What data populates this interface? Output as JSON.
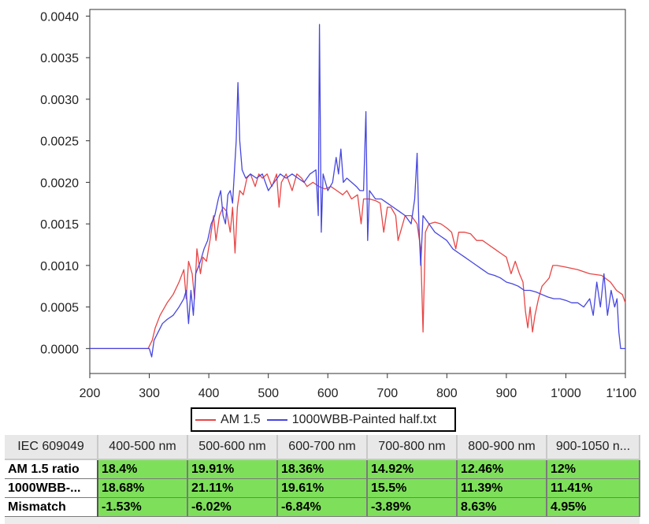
{
  "chart_data": {
    "type": "line",
    "title": "",
    "xlabel": "",
    "ylabel": "",
    "xlim": [
      200,
      1100
    ],
    "ylim": [
      -0.0003,
      0.00408
    ],
    "x_ticks": [
      {
        "value": 200,
        "label": "200"
      },
      {
        "value": 300,
        "label": "300"
      },
      {
        "value": 400,
        "label": "400"
      },
      {
        "value": 500,
        "label": "500"
      },
      {
        "value": 600,
        "label": "600"
      },
      {
        "value": 700,
        "label": "700"
      },
      {
        "value": 800,
        "label": "800"
      },
      {
        "value": 900,
        "label": "900"
      },
      {
        "value": 1000,
        "label": "1'000"
      },
      {
        "value": 1100,
        "label": "1'100"
      }
    ],
    "y_ticks": [
      {
        "value": 0.0,
        "label": "0.0000"
      },
      {
        "value": 0.0005,
        "label": "0.0005"
      },
      {
        "value": 0.001,
        "label": "0.0010"
      },
      {
        "value": 0.0015,
        "label": "0.0015"
      },
      {
        "value": 0.002,
        "label": "0.0020"
      },
      {
        "value": 0.0025,
        "label": "0.0025"
      },
      {
        "value": 0.003,
        "label": "0.0030"
      },
      {
        "value": 0.0035,
        "label": "0.0035"
      },
      {
        "value": 0.004,
        "label": "0.0040"
      }
    ],
    "grid": false,
    "legend_position": "bottom-center",
    "series": [
      {
        "name": "AM 1.5",
        "color": "#e84545",
        "points": [
          [
            200,
            0
          ],
          [
            280,
            0
          ],
          [
            298,
            0
          ],
          [
            305,
            0.0001
          ],
          [
            310,
            0.00025
          ],
          [
            318,
            0.0004
          ],
          [
            330,
            0.00055
          ],
          [
            340,
            0.00065
          ],
          [
            350,
            0.0008
          ],
          [
            358,
            0.00095
          ],
          [
            362,
            0.0006
          ],
          [
            366,
            0.00105
          ],
          [
            372,
            0.0009
          ],
          [
            376,
            0.0006
          ],
          [
            380,
            0.0012
          ],
          [
            386,
            0.0009
          ],
          [
            390,
            0.0011
          ],
          [
            396,
            0.00105
          ],
          [
            402,
            0.0013
          ],
          [
            408,
            0.0016
          ],
          [
            412,
            0.0013
          ],
          [
            418,
            0.0016
          ],
          [
            424,
            0.0017
          ],
          [
            430,
            0.00165
          ],
          [
            436,
            0.0014
          ],
          [
            440,
            0.0017
          ],
          [
            444,
            0.00115
          ],
          [
            448,
            0.0017
          ],
          [
            452,
            0.0019
          ],
          [
            458,
            0.00185
          ],
          [
            464,
            0.00205
          ],
          [
            470,
            0.0021
          ],
          [
            478,
            0.00195
          ],
          [
            484,
            0.0021
          ],
          [
            490,
            0.00205
          ],
          [
            498,
            0.0021
          ],
          [
            506,
            0.00195
          ],
          [
            514,
            0.0021
          ],
          [
            518,
            0.0017
          ],
          [
            522,
            0.002
          ],
          [
            530,
            0.0021
          ],
          [
            540,
            0.0019
          ],
          [
            548,
            0.0021
          ],
          [
            556,
            0.00205
          ],
          [
            565,
            0.00195
          ],
          [
            575,
            0.002
          ],
          [
            585,
            0.00195
          ],
          [
            595,
            0.00192
          ],
          [
            605,
            0.00195
          ],
          [
            615,
            0.0019
          ],
          [
            625,
            0.00185
          ],
          [
            632,
            0.0019
          ],
          [
            640,
            0.0018
          ],
          [
            650,
            0.00185
          ],
          [
            656,
            0.0015
          ],
          [
            660,
            0.0018
          ],
          [
            670,
            0.0018
          ],
          [
            680,
            0.00178
          ],
          [
            688,
            0.00175
          ],
          [
            694,
            0.0014
          ],
          [
            700,
            0.0017
          ],
          [
            706,
            0.0017
          ],
          [
            714,
            0.0016
          ],
          [
            718,
            0.0013
          ],
          [
            724,
            0.00145
          ],
          [
            730,
            0.0016
          ],
          [
            740,
            0.0016
          ],
          [
            750,
            0.0015
          ],
          [
            756,
            0.0012
          ],
          [
            760,
            0.0002
          ],
          [
            764,
            0.0014
          ],
          [
            770,
            0.0015
          ],
          [
            780,
            0.00152
          ],
          [
            790,
            0.0015
          ],
          [
            800,
            0.00145
          ],
          [
            808,
            0.0014
          ],
          [
            815,
            0.0012
          ],
          [
            820,
            0.0014
          ],
          [
            830,
            0.0014
          ],
          [
            840,
            0.00138
          ],
          [
            850,
            0.0013
          ],
          [
            860,
            0.0013
          ],
          [
            870,
            0.00125
          ],
          [
            880,
            0.0012
          ],
          [
            890,
            0.00115
          ],
          [
            900,
            0.0011
          ],
          [
            908,
            0.0009
          ],
          [
            915,
            0.00105
          ],
          [
            922,
            0.0009
          ],
          [
            928,
            0.0008
          ],
          [
            932,
            0.00045
          ],
          [
            936,
            0.00025
          ],
          [
            940,
            0.0005
          ],
          [
            944,
            0.0002
          ],
          [
            948,
            0.0004
          ],
          [
            954,
            0.0006
          ],
          [
            960,
            0.00075
          ],
          [
            966,
            0.0008
          ],
          [
            972,
            0.00085
          ],
          [
            978,
            0.001
          ],
          [
            985,
            0.001
          ],
          [
            1000,
            0.00098
          ],
          [
            1020,
            0.00095
          ],
          [
            1040,
            0.0009
          ],
          [
            1060,
            0.00088
          ],
          [
            1075,
            0.0008
          ],
          [
            1085,
            0.0007
          ],
          [
            1095,
            0.00065
          ],
          [
            1100,
            0.00055
          ]
        ]
      },
      {
        "name": "1000WBB-Painted half.txt",
        "color": "#4646e0",
        "points": [
          [
            200,
            0
          ],
          [
            300,
            0
          ],
          [
            304,
            -0.0001
          ],
          [
            308,
            0.0001
          ],
          [
            315,
            0.0002
          ],
          [
            322,
            0.0003
          ],
          [
            330,
            0.00035
          ],
          [
            340,
            0.0004
          ],
          [
            350,
            0.0005
          ],
          [
            358,
            0.0006
          ],
          [
            362,
            0.0007
          ],
          [
            366,
            0.0003
          ],
          [
            370,
            0.0007
          ],
          [
            374,
            0.0004
          ],
          [
            378,
            0.0009
          ],
          [
            386,
            0.00105
          ],
          [
            392,
            0.0012
          ],
          [
            398,
            0.0013
          ],
          [
            404,
            0.0015
          ],
          [
            410,
            0.0016
          ],
          [
            416,
            0.0018
          ],
          [
            420,
            0.0019
          ],
          [
            424,
            0.0016
          ],
          [
            428,
            0.0015
          ],
          [
            432,
            0.00185
          ],
          [
            436,
            0.0019
          ],
          [
            440,
            0.00175
          ],
          [
            446,
            0.0025
          ],
          [
            449,
            0.0032
          ],
          [
            452,
            0.0025
          ],
          [
            456,
            0.00215
          ],
          [
            462,
            0.00205
          ],
          [
            470,
            0.0021
          ],
          [
            480,
            0.00205
          ],
          [
            490,
            0.0021
          ],
          [
            500,
            0.0019
          ],
          [
            510,
            0.002
          ],
          [
            520,
            0.0021
          ],
          [
            530,
            0.00205
          ],
          [
            540,
            0.0021
          ],
          [
            550,
            0.00205
          ],
          [
            560,
            0.002
          ],
          [
            570,
            0.0021
          ],
          [
            580,
            0.00215
          ],
          [
            584,
            0.0016
          ],
          [
            586,
            0.0039
          ],
          [
            589,
            0.0014
          ],
          [
            592,
            0.0021
          ],
          [
            600,
            0.0019
          ],
          [
            608,
            0.002
          ],
          [
            614,
            0.0023
          ],
          [
            618,
            0.0021
          ],
          [
            622,
            0.0024
          ],
          [
            626,
            0.002
          ],
          [
            632,
            0.00205
          ],
          [
            640,
            0.002
          ],
          [
            648,
            0.00195
          ],
          [
            654,
            0.0019
          ],
          [
            660,
            0.0019
          ],
          [
            664,
            0.00285
          ],
          [
            667,
            0.0013
          ],
          [
            670,
            0.0019
          ],
          [
            680,
            0.0018
          ],
          [
            690,
            0.0018
          ],
          [
            700,
            0.00175
          ],
          [
            710,
            0.0017
          ],
          [
            720,
            0.00165
          ],
          [
            730,
            0.0016
          ],
          [
            740,
            0.0015
          ],
          [
            746,
            0.0018
          ],
          [
            750,
            0.00235
          ],
          [
            753,
            0.0015
          ],
          [
            756,
            0.001
          ],
          [
            760,
            0.0016
          ],
          [
            770,
            0.0015
          ],
          [
            780,
            0.0014
          ],
          [
            790,
            0.00135
          ],
          [
            800,
            0.0013
          ],
          [
            810,
            0.0012
          ],
          [
            820,
            0.00115
          ],
          [
            830,
            0.0011
          ],
          [
            840,
            0.00105
          ],
          [
            850,
            0.001
          ],
          [
            860,
            0.00095
          ],
          [
            870,
            0.0009
          ],
          [
            880,
            0.00088
          ],
          [
            890,
            0.00085
          ],
          [
            900,
            0.0008
          ],
          [
            910,
            0.00078
          ],
          [
            920,
            0.00075
          ],
          [
            930,
            0.0007
          ],
          [
            940,
            0.0007
          ],
          [
            950,
            0.00068
          ],
          [
            960,
            0.00065
          ],
          [
            970,
            0.00062
          ],
          [
            980,
            0.0006
          ],
          [
            990,
            0.0006
          ],
          [
            1000,
            0.00058
          ],
          [
            1010,
            0.00055
          ],
          [
            1020,
            0.00055
          ],
          [
            1030,
            0.0005
          ],
          [
            1040,
            0.0006
          ],
          [
            1046,
            0.0004
          ],
          [
            1052,
            0.0008
          ],
          [
            1058,
            0.0005
          ],
          [
            1064,
            0.0009
          ],
          [
            1070,
            0.0004
          ],
          [
            1076,
            0.0007
          ],
          [
            1082,
            0.0005
          ],
          [
            1086,
            0.0006
          ],
          [
            1089,
            0.0002
          ],
          [
            1092,
            0
          ],
          [
            1100,
            0
          ]
        ]
      }
    ]
  },
  "table": {
    "headers": [
      "IEC 609049",
      "400-500 nm",
      "500-600 nm",
      "600-700 nm",
      "700-800 nm",
      "800-900 nm",
      "900-1050 n..."
    ],
    "rows": [
      {
        "label": "AM 1.5 ratio",
        "values": [
          "18.4%",
          "19.91%",
          "18.36%",
          "14.92%",
          "12.46%",
          "12%"
        ]
      },
      {
        "label": "1000WBB-...",
        "values": [
          "18.68%",
          "21.11%",
          "19.61%",
          "15.5%",
          "11.39%",
          "11.41%"
        ]
      },
      {
        "label": "Mismatch",
        "values": [
          "-1.53%",
          "-6.02%",
          "-6.84%",
          "-3.89%",
          "8.63%",
          "4.95%"
        ]
      }
    ]
  },
  "colors": {
    "cell_green": "#7ee05a",
    "header_gray": "#e8e8e8"
  }
}
